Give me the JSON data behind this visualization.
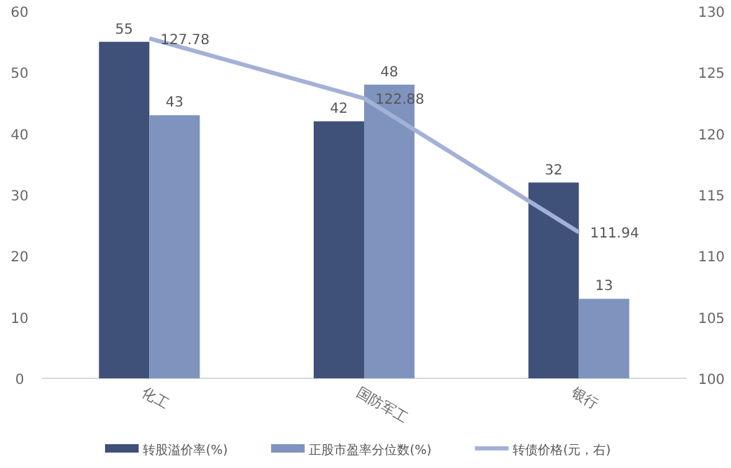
{
  "chart_data": {
    "type": "bar",
    "categories": [
      "化工",
      "国防军工",
      "银行"
    ],
    "series": [
      {
        "name": "转股溢价率(%)",
        "color": "#3f5079",
        "values": [
          55,
          42,
          32
        ]
      },
      {
        "name": "正股市盈率分位数(%)",
        "color": "#7f93bf",
        "values": [
          43,
          48,
          13
        ]
      },
      {
        "name": "转债价格(元，右)",
        "color": "#a3b1d6",
        "type": "line",
        "axis": "y2",
        "values": [
          127.78,
          122.88,
          111.94
        ]
      }
    ],
    "ylim": [
      0,
      60
    ],
    "yticks": [
      0,
      10,
      20,
      30,
      40,
      50,
      60
    ],
    "y2lim": [
      100,
      130
    ],
    "y2ticks": [
      100,
      105,
      110,
      115,
      120,
      125,
      130
    ],
    "data_labels": true,
    "legend": "bottom",
    "grid": false,
    "marker": "none"
  }
}
